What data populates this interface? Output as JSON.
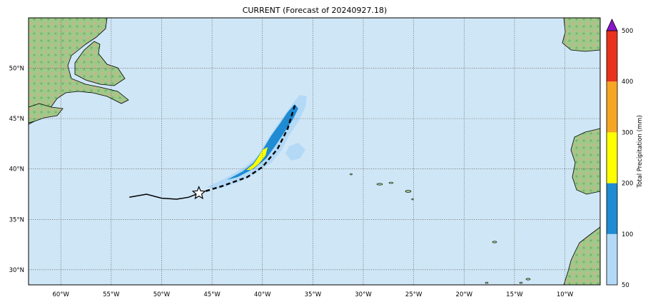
{
  "title": "CURRENT (Forecast of 20240927.18)",
  "map": {
    "lon_range": [
      -63.2,
      -6.5
    ],
    "lat_range": [
      28.5,
      55
    ],
    "lon_ticks": [
      "60°W",
      "55°W",
      "50°W",
      "45°W",
      "40°W",
      "35°W",
      "30°W",
      "25°W",
      "20°W",
      "15°W",
      "10°W"
    ],
    "lon_tick_values": [
      -60,
      -55,
      -50,
      -45,
      -40,
      -35,
      -30,
      -25,
      -20,
      -15,
      -10
    ],
    "lat_ticks": [
      "30°N",
      "35°N",
      "40°N",
      "45°N",
      "50°N"
    ],
    "lat_tick_values": [
      30,
      35,
      40,
      45,
      50
    ],
    "ocean_color": "#cfe6f6",
    "grid": "dotted",
    "past_track": [
      [
        -53.2,
        37.2
      ],
      [
        -51.5,
        37.5
      ],
      [
        -50,
        37.1
      ],
      [
        -48.5,
        37.0
      ],
      [
        -47.3,
        37.2
      ],
      [
        -46.3,
        37.6
      ]
    ],
    "forecast_track": [
      [
        -46.3,
        37.6
      ],
      [
        -44,
        38.3
      ],
      [
        -41.5,
        39.2
      ],
      [
        -40,
        40.2
      ],
      [
        -38.5,
        42.0
      ],
      [
        -37.5,
        44.0
      ],
      [
        -36.8,
        46.3
      ]
    ],
    "current_position": [
      -46.3,
      37.6
    ],
    "current_position_icon": "star-icon"
  },
  "colorbar": {
    "label": "Total Precipitation (mm)",
    "ticks": [
      "50",
      "100",
      "200",
      "300",
      "400",
      "500"
    ],
    "colors": [
      "#b3d9f7",
      "#1e8bd3",
      "#ffff00",
      "#f5a623",
      "#e8321e"
    ],
    "extend_color": "#8a16c9"
  }
}
